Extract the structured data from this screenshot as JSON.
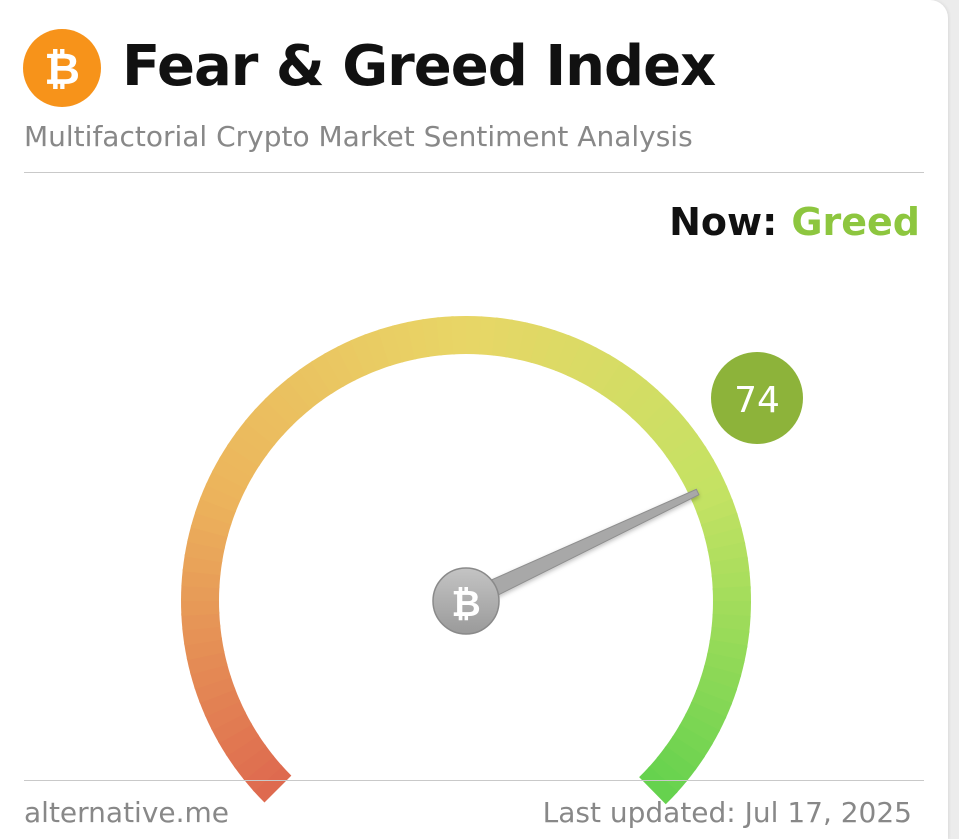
{
  "header": {
    "logo_icon": "bitcoin-icon",
    "title": "Fear & Greed Index",
    "subtitle": "Multifactorial Crypto Market Sentiment Analysis"
  },
  "status": {
    "now_label": "Now:",
    "classification": "Greed",
    "classification_color": "#8dc63f"
  },
  "gauge": {
    "value": "74",
    "min": 0,
    "max": 100,
    "value_badge_color": "#8db33a",
    "center_icon": "bitcoin-icon",
    "gradient_colors": [
      "#de6a4f",
      "#ecb45c",
      "#e8d666",
      "#c4e263",
      "#66d24e"
    ]
  },
  "footer": {
    "source": "alternative.me",
    "last_updated": "Last updated: Jul 17, 2025"
  }
}
